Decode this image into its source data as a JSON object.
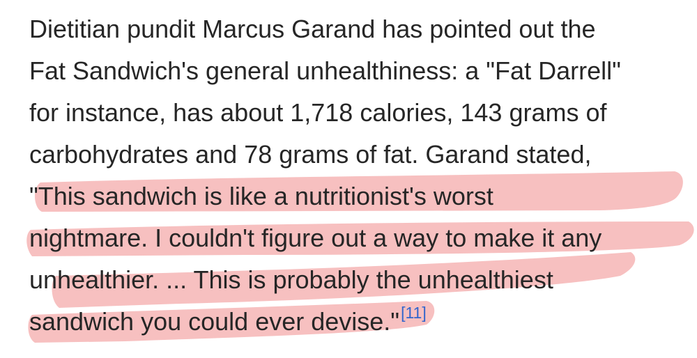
{
  "article": {
    "lines": [
      "Dietitian pundit Marcus Garand has pointed out the",
      "Fat Sandwich's general unhealthiness: a \"Fat Darrell\"",
      "for instance, has about 1,718 calories, 143 grams of",
      "carbohydrates and 78 grams of fat. Garand stated,",
      "\"This sandwich is like a nutritionist's worst",
      "nightmare. I couldn't figure out a way to make it any",
      "unhealthier. ... This is probably the unhealthiest",
      "sandwich you could ever devise.\""
    ],
    "citation": "[11]"
  },
  "colors": {
    "text": "#262626",
    "citation_link": "#3366cc",
    "highlight": "#f08c8c"
  }
}
